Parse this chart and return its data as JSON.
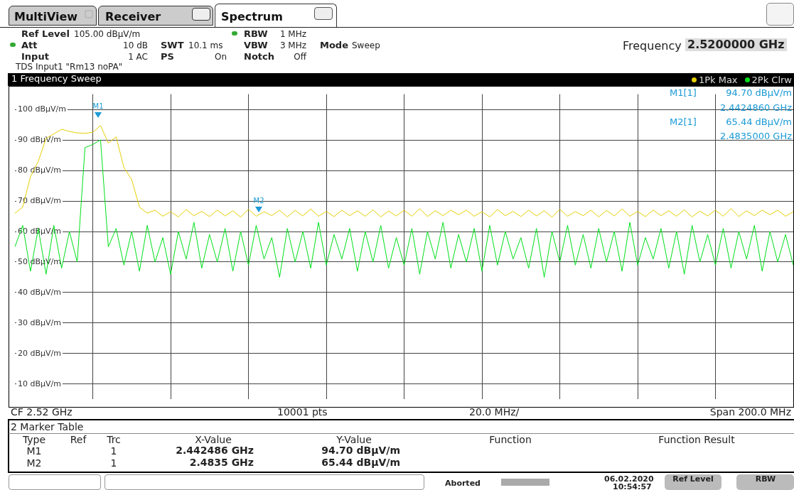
{
  "chart_data": {
    "type": "line",
    "categories": [
      null,
      null,
      null,
      null,
      null,
      null,
      null,
      null,
      null,
      null,
      null,
      null,
      null,
      null,
      null,
      null,
      null,
      null,
      null,
      null,
      null,
      null,
      null,
      null,
      null,
      null,
      null,
      null,
      null,
      null,
      null,
      null,
      null,
      null,
      null,
      null,
      null,
      null,
      null,
      null,
      null,
      null,
      null,
      null,
      null,
      null,
      null,
      null,
      null,
      null,
      null,
      null,
      null,
      null,
      null,
      null,
      null,
      null,
      null,
      null,
      null,
      null,
      null,
      null,
      null,
      null,
      null,
      null,
      null,
      null,
      null,
      null,
      null,
      null,
      null,
      null,
      null,
      null,
      null,
      null,
      null,
      null,
      null,
      null,
      null,
      null,
      null,
      null,
      null,
      null,
      null,
      null,
      null,
      null,
      null,
      null,
      null,
      null,
      null,
      null,
      null
    ],
    "ylim": [
      5,
      105
    ],
    "yticks": [
      {
        "value": 10,
        "label": "10 dBµV/m"
      },
      {
        "value": 20,
        "label": "20 dBµV/m"
      },
      {
        "value": 30,
        "label": "30 dBµV/m"
      },
      {
        "value": 40,
        "label": "40 dBµV/m"
      },
      {
        "value": 50,
        "label": "50 dBµV/m"
      },
      {
        "value": 60,
        "label": "60 dBµV/m"
      },
      {
        "value": 70,
        "label": "70 dBµV/m"
      },
      {
        "value": 80,
        "label": "80 dBµV/m"
      },
      {
        "value": 90,
        "label": "90 dBµV/m"
      },
      {
        "value": 100,
        "label": "100 dBµV/m"
      }
    ],
    "tick_labels": "y",
    "grid": true,
    "legend": "top right",
    "series": [
      {
        "name": "1Pk Max",
        "color": "#e6cf00",
        "values": [
          66,
          68,
          78,
          83,
          90.5,
          92,
          93.5,
          92.8,
          92.3,
          92.2,
          92.5,
          94.7,
          89,
          91,
          81,
          77,
          68,
          66,
          67,
          65,
          66.5,
          64.8,
          67.2,
          65.2,
          66.6,
          64.9,
          67,
          65.1,
          66.8,
          64.7,
          67.3,
          65,
          66.5,
          65.2,
          67,
          64.8,
          66.9,
          65.1,
          67.4,
          65,
          66.6,
          64.9,
          67,
          65.2,
          66.8,
          65,
          67.1,
          64.8,
          66.7,
          65.1,
          67,
          65,
          67.5,
          64.9,
          66.8,
          65.2,
          67,
          65.5,
          67,
          65,
          66.5,
          64.8,
          67.2,
          65.2,
          66.6,
          64.9,
          67,
          65.1,
          66.8,
          64.7,
          67.3,
          65,
          66.5,
          65.2,
          67,
          64.8,
          66.9,
          65.1,
          67.4,
          65,
          66.6,
          64.9,
          67,
          65.2,
          66.8,
          65,
          67.1,
          64.8,
          66.7,
          65.1,
          67,
          65,
          67.5,
          64.9,
          66.8,
          65.2,
          67,
          65.5,
          67,
          65,
          66.5
        ]
      },
      {
        "name": "2Pk Clrw",
        "color": "#00e01a",
        "values": [
          55,
          62,
          47,
          61,
          46,
          62,
          48,
          60,
          50,
          87.5,
          88.5,
          90,
          55,
          61,
          49,
          60,
          47,
          62,
          50,
          58,
          46,
          60,
          51,
          63,
          48,
          59,
          50,
          61,
          47,
          60,
          49,
          62,
          51,
          58,
          45,
          61,
          50,
          60,
          48,
          63,
          49,
          59,
          51,
          61,
          47,
          60,
          50,
          62,
          48,
          58,
          49,
          61,
          46,
          60,
          51,
          63,
          48,
          59,
          50,
          61,
          47,
          62,
          49,
          60,
          51,
          58,
          48,
          61,
          45,
          60,
          50,
          62,
          49,
          59,
          48,
          61,
          50,
          60,
          47,
          63,
          49,
          58,
          51,
          61,
          48,
          60,
          46,
          62,
          50,
          59,
          49,
          61,
          48,
          60,
          51,
          62,
          47,
          60,
          50,
          59,
          49
        ]
      }
    ],
    "annotations": [
      "MultiView",
      "Receiver",
      "Spectrum",
      "Ref Level",
      "105.00 dBµV/m",
      "Att",
      "10 dB",
      "SWT",
      "10.1 ms",
      "Input",
      "1 AC",
      "PS",
      "On",
      "RBW",
      "1 MHz",
      "VBW",
      "3 MHz",
      "Notch",
      "Off",
      "Mode",
      "Sweep",
      "TDS Input1 \"Rm13 noPA\"",
      "Frequency",
      "2.5200000 GHz",
      "1 Frequency Sweep",
      "M1[1]",
      "94.70 dBµV/m",
      "2.4424860 GHz",
      "M2[1]",
      "65.44 dBµV/m",
      "2.4835000 GHz",
      "CF 2.52 GHz",
      "10001 pts",
      "20.0 MHz/",
      "Span 200.0 MHz",
      "2 Marker Table",
      "Type",
      "Ref",
      "Trc",
      "X-Value",
      "Y-Value",
      "Function",
      "Function Result",
      "M1",
      "1",
      "2.442486 GHz",
      "94.70 dBµV/m",
      "M2",
      "1",
      "2.4835 GHz",
      "65.44 dBµV/m",
      "Aborted",
      "06.02.2020",
      "10:54:57",
      "Ref Level",
      "RBW",
      "M1",
      "M2"
    ]
  }
}
